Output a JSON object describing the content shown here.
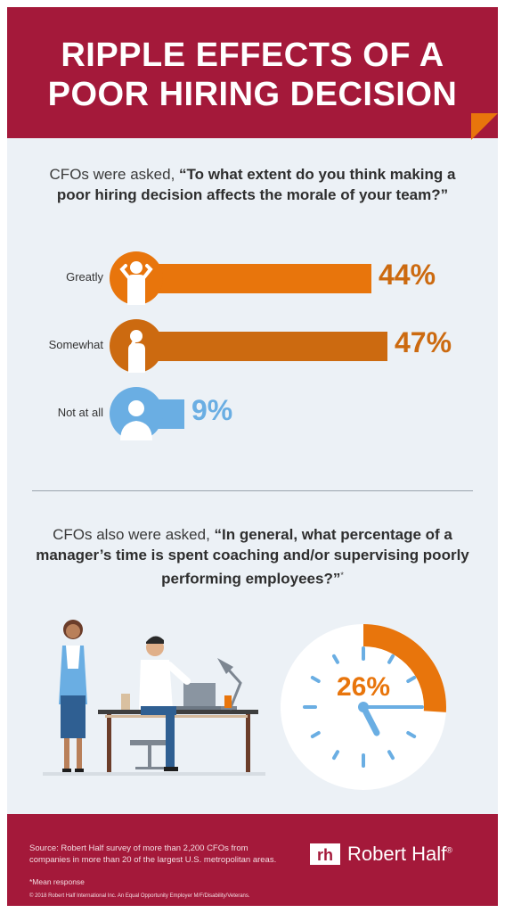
{
  "header": {
    "title_line1": "RIPPLE EFFECTS OF A",
    "title_line2": "POOR HIRING DECISION"
  },
  "question1": {
    "prefix": "CFOs were asked, ",
    "text": "“To what extent do you think making a poor hiring decision affects the morale of your team?”"
  },
  "question2": {
    "prefix": "CFOs also were asked, ",
    "text": "“In general, what percentage of a manager’s time is spent coaching and/or supervising poorly performing employees?”",
    "marker": "*"
  },
  "colors": {
    "greatly": "#e8750c",
    "somewhat": "#cc6a10",
    "not_at_all": "#6aaee3",
    "brand": "#a4193a"
  },
  "icons": [
    "frustrated-person-icon",
    "thinking-person-icon",
    "neutral-person-icon",
    "analog-clock-icon",
    "office-scene-illustration",
    "robert-half-logo-mark"
  ],
  "chart_data": [
    {
      "type": "bar",
      "categories": [
        "Greatly",
        "Somewhat",
        "Not at all"
      ],
      "values": [
        44,
        47,
        9
      ],
      "value_labels": [
        "44%",
        "47%",
        "9%"
      ],
      "ylim": [
        0,
        100
      ]
    },
    {
      "type": "pie",
      "labels": [
        "26%"
      ],
      "values": [
        26
      ]
    }
  ],
  "footer": {
    "source": "Source: Robert Half survey of more than 2,200 CFOs from companies in more than 20 of the largest U.S. metropolitan areas.",
    "note": "*Mean response",
    "copyright": "© 2018 Robert Half International Inc. An Equal Opportunity Employer M/F/Disability/Veterans.",
    "logo_text": "Robert Half",
    "logo_reg": "®"
  }
}
